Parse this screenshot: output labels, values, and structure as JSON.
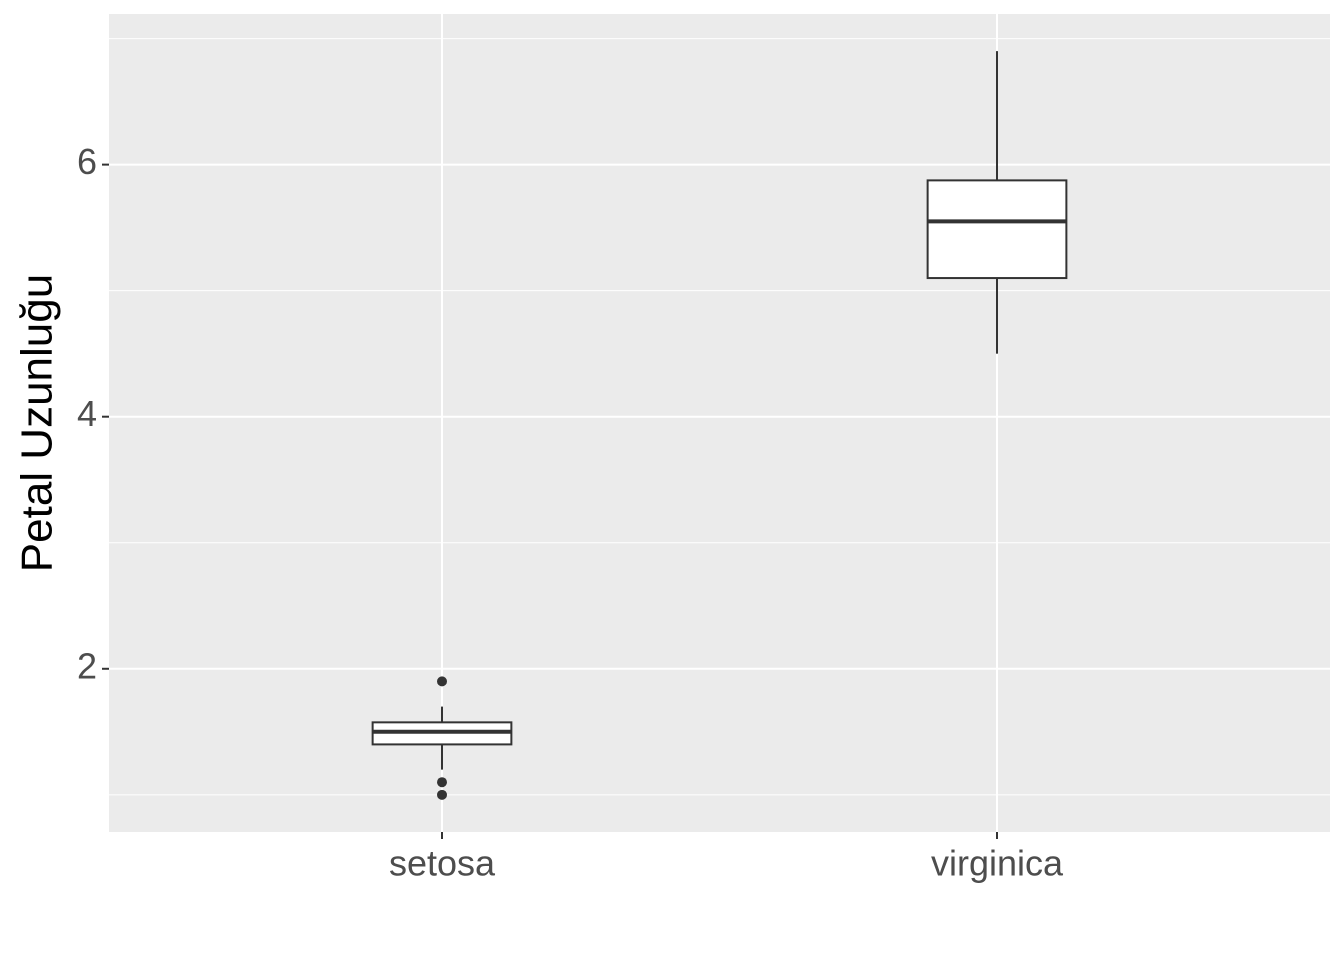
{
  "chart_data": {
    "type": "box",
    "y_label": "Petal Uzunluğu",
    "categories": [
      "setosa",
      "virginica"
    ],
    "series": [
      {
        "color": "#ffffff",
        "boxes": [
          {
            "min": 1.2,
            "q1": 1.4,
            "median": 1.5,
            "q3": 1.575,
            "max": 1.7,
            "outliers": [
              1.9,
              1.1,
              1.0
            ]
          },
          {
            "min": 4.5,
            "q1": 5.1,
            "median": 5.55,
            "q3": 5.875,
            "max": 6.9,
            "outliers": []
          }
        ]
      }
    ],
    "ylim": [
      0.705,
      7.195
    ],
    "yticks": [
      2,
      4,
      6
    ],
    "minor_yticks": [
      1,
      3,
      5,
      7
    ],
    "grid": true
  }
}
